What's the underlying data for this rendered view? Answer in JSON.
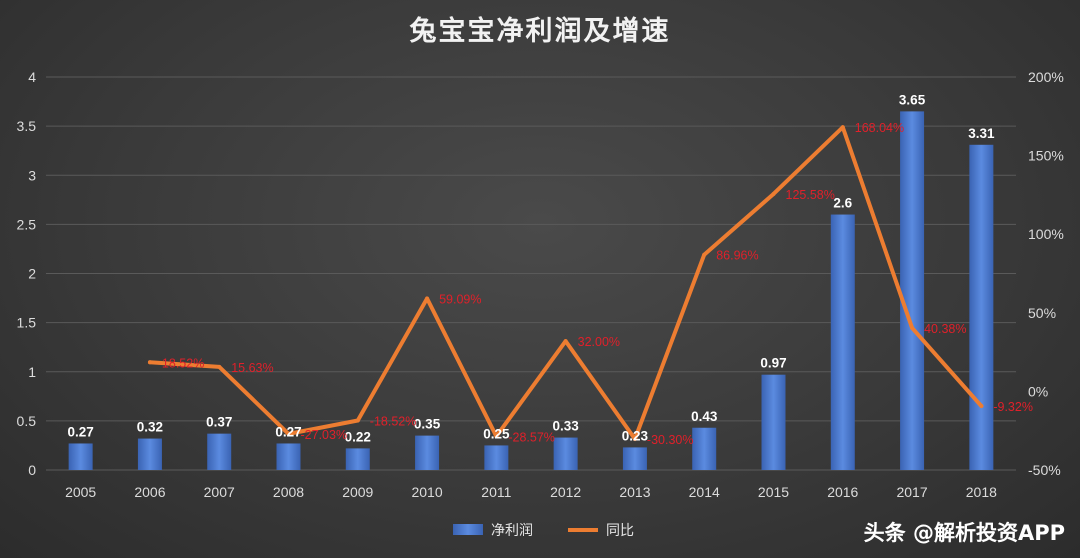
{
  "chart_data": {
    "type": "bar",
    "title": "兔宝宝净利润及增速",
    "categories": [
      "2005",
      "2006",
      "2007",
      "2008",
      "2009",
      "2010",
      "2011",
      "2012",
      "2013",
      "2014",
      "2015",
      "2016",
      "2017",
      "2018"
    ],
    "series": [
      {
        "name": "净利润",
        "type": "bar",
        "axis": "left",
        "color": "#4472c4",
        "values": [
          0.27,
          0.32,
          0.37,
          0.27,
          0.22,
          0.35,
          0.25,
          0.33,
          0.23,
          0.43,
          0.97,
          2.6,
          3.65,
          3.31
        ],
        "labels": [
          "0.27",
          "0.32",
          "0.37",
          "0.27",
          "0.22",
          "0.35",
          "0.25",
          "0.33",
          "0.23",
          "0.43",
          "0.97",
          "2.6",
          "3.65",
          "3.31"
        ]
      },
      {
        "name": "同比",
        "type": "line",
        "axis": "right",
        "color": "#ed7d31",
        "values": [
          null,
          18.52,
          15.63,
          -27.03,
          -18.52,
          59.09,
          -28.57,
          32.0,
          -30.3,
          86.96,
          125.58,
          168.04,
          40.38,
          -9.32
        ],
        "labels": [
          "",
          "18.52%",
          "15.63%",
          "-27.03%",
          "-18.52%",
          "59.09%",
          "-28.57%",
          "32.00%",
          "-30.30%",
          "86.96%",
          "125.58%",
          "168.04%",
          "40.38%",
          "-9.32%"
        ]
      }
    ],
    "y_left": {
      "min": 0,
      "max": 4,
      "ticks": [
        "0",
        "0.5",
        "1",
        "1.5",
        "2",
        "2.5",
        "3",
        "3.5",
        "4"
      ]
    },
    "y_right": {
      "min": -50,
      "max": 200,
      "ticks": [
        "-50%",
        "0%",
        "50%",
        "100%",
        "150%",
        "200%"
      ]
    },
    "grid": true,
    "legend": {
      "position": "bottom",
      "entries": [
        "净利润",
        "同比"
      ]
    }
  },
  "watermark": {
    "text": "头条 @解析投资APP"
  }
}
